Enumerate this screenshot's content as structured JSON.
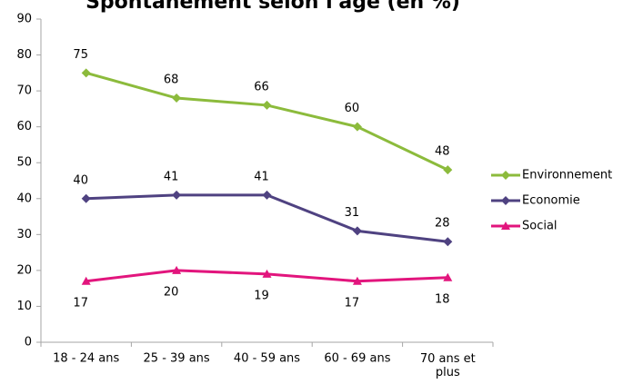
{
  "chart_data": {
    "type": "line",
    "title": "Spontanément selon l'âge (en %)",
    "categories": [
      "18 - 24 ans",
      "25 - 39 ans",
      "40 - 59 ans",
      "60 - 69 ans",
      "70 ans et plus"
    ],
    "series": [
      {
        "name": "Environnement",
        "color": "#8cbb3c",
        "marker": "diamond",
        "values": [
          75,
          68,
          66,
          60,
          48
        ]
      },
      {
        "name": "Economie",
        "color": "#4f4281",
        "marker": "diamond",
        "values": [
          40,
          41,
          41,
          31,
          28
        ]
      },
      {
        "name": "Social",
        "color": "#e2157d",
        "marker": "triangle",
        "values": [
          17,
          20,
          19,
          17,
          18
        ]
      }
    ],
    "ylim": [
      0,
      90
    ],
    "yticks": [
      0,
      10,
      20,
      30,
      40,
      50,
      60,
      70,
      80,
      90
    ],
    "grid": false,
    "legend": "right"
  }
}
